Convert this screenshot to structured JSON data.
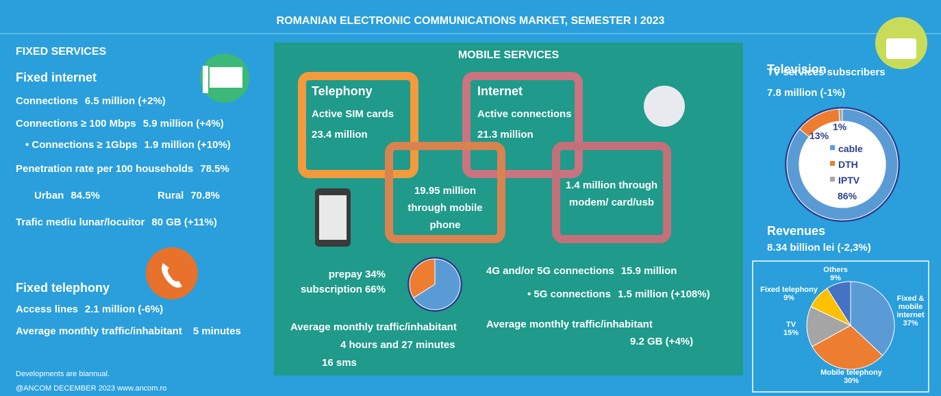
{
  "header": {
    "title": "ROMANIAN ELECTRONIC COMMUNICATIONS MARKET, SEMESTER I 2023"
  },
  "fixed": {
    "heading": "FIXED SERVICES",
    "internet": {
      "title": "Fixed internet",
      "rows": [
        {
          "label": "Connections",
          "value": "6.5 million (+2%)"
        },
        {
          "label": "Connections ≥ 100 Mbps",
          "value": "5.9 million (+4%)"
        },
        {
          "label": "• Connections ≥ 1Gbps",
          "value": "1.9 million (+10%)"
        },
        {
          "label": "Penetration rate per 100 households",
          "value": "78.5%"
        },
        {
          "label": "Urban",
          "value": "84.5%"
        },
        {
          "label": "Rural",
          "value": "70.8%"
        },
        {
          "label": "Trafic mediu lunar/locuitor",
          "value": "80 GB (+11%)"
        }
      ]
    },
    "telephony": {
      "title": "Fixed telephony",
      "rows": [
        {
          "label": "Access lines",
          "value": "2.1 million (-6%)"
        },
        {
          "label": "Average monthly traffic/inhabitant",
          "value": "5 minutes"
        }
      ]
    }
  },
  "mobile": {
    "heading": "MOBILE SERVICES",
    "telephony": {
      "title": "Telephony",
      "label": "Active SIM cards",
      "value": "23.4 million",
      "via_phone": "19.95 million through mobile phone"
    },
    "internet": {
      "title": "Internet",
      "label": "Active connections",
      "value": "21.3 million",
      "via_modem": "1.4 million through modem/ card/usb"
    },
    "sim_split": {
      "type": "pie",
      "categories": [
        "prepay",
        "subscription"
      ],
      "values": [
        34,
        66
      ],
      "value_labels": [
        "34%",
        "66%"
      ],
      "colors": [
        "#ed7d31",
        "#5b9bd5"
      ]
    },
    "telephony_traffic": {
      "label": "Average monthly traffic/inhabitant",
      "values": [
        "4 hours and 27 minutes",
        "16 sms"
      ]
    },
    "connections": [
      {
        "label": "4G and/or 5G connections",
        "value": "15.9 million"
      },
      {
        "label": "• 5G connections",
        "value": "1.5 million (+108%)"
      }
    ],
    "internet_traffic": {
      "label": "Average monthly traffic/inhabitant",
      "value": "9.2 GB (+4%)"
    }
  },
  "television": {
    "title": "Television",
    "label": "TV services subscribers",
    "value": "7.8 million (-1%)",
    "chart": {
      "type": "donut",
      "categories": [
        "cable",
        "DTH",
        "IPTV"
      ],
      "values": [
        86,
        13,
        1
      ],
      "value_labels": [
        "86%",
        "13%",
        "1%"
      ],
      "colors": [
        "#5b9bd5",
        "#ed7d31",
        "#a5a5a5"
      ]
    }
  },
  "revenues": {
    "title": "Revenues",
    "value": "8.34 billion lei (-2,3%)",
    "chart": {
      "type": "pie",
      "categories": [
        "Fixed & mobile internet",
        "Mobile telephony",
        "TV",
        "Fixed telephony",
        "Others"
      ],
      "values": [
        37,
        30,
        15,
        9,
        9
      ],
      "value_labels": [
        "37%",
        "30%",
        "15%",
        "9%",
        "9%"
      ],
      "colors": [
        "#5b9bd5",
        "#ed7d31",
        "#a5a5a5",
        "#ffc000",
        "#4472c4"
      ]
    }
  },
  "footer": {
    "note": "Developments are biannual.",
    "credit": "@ANCOM DECEMBER 2023 www.ancom.ro"
  }
}
